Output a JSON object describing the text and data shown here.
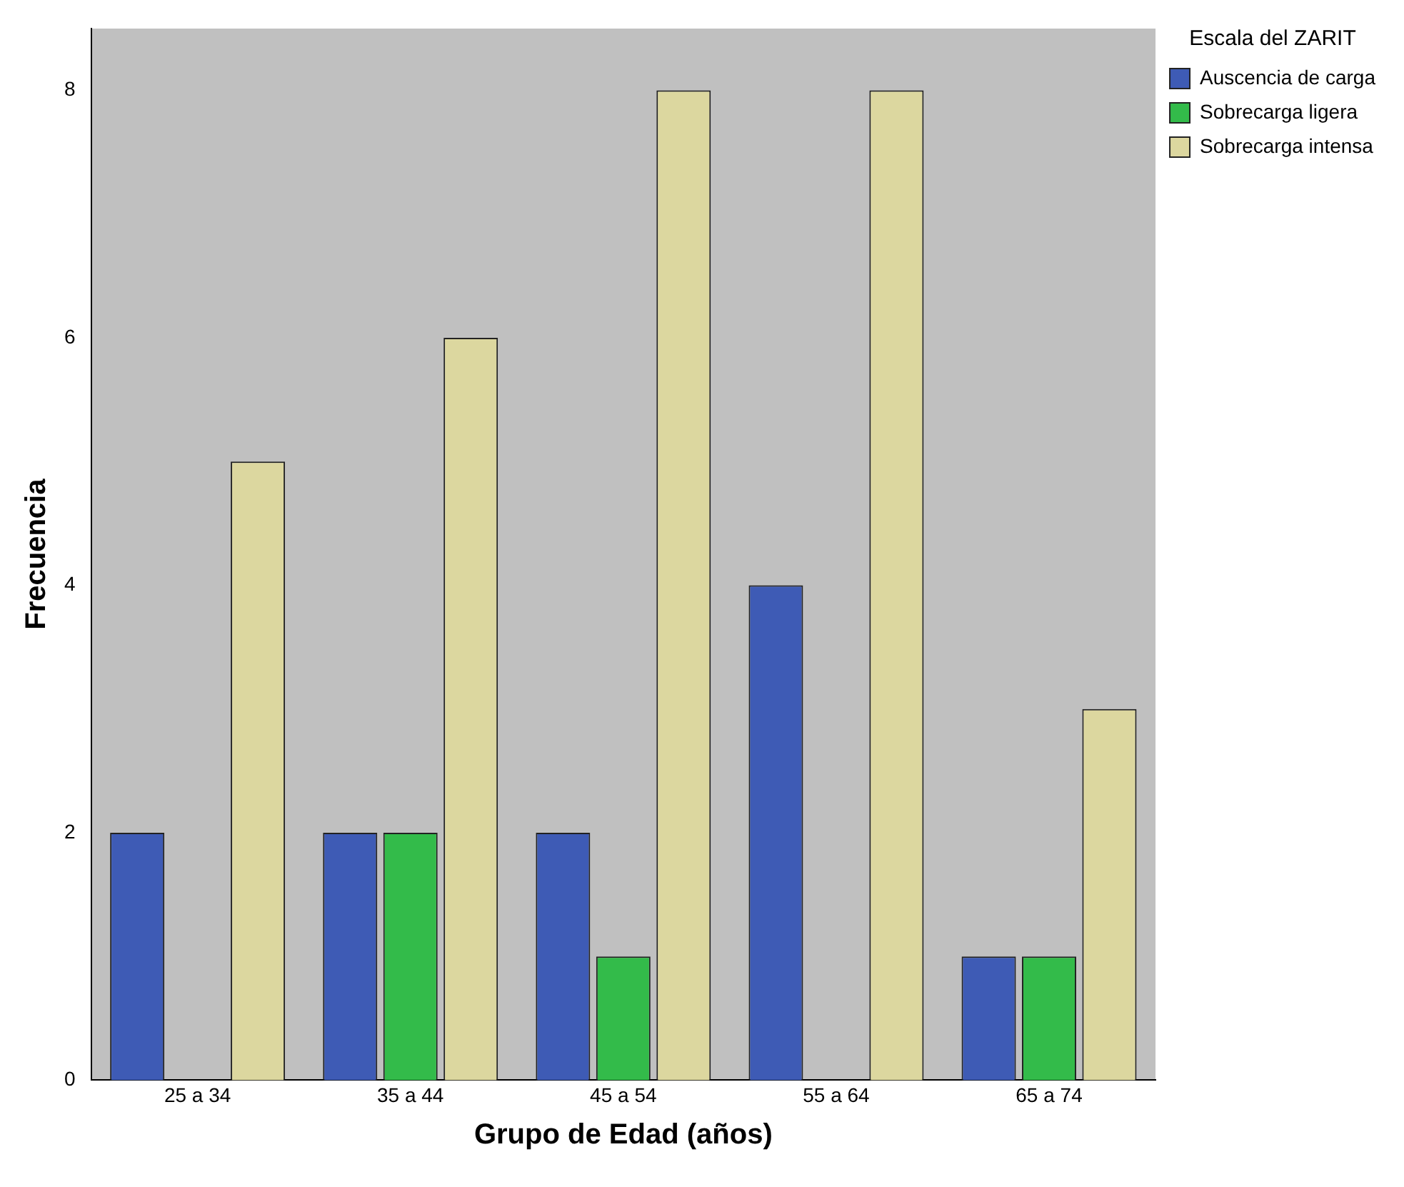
{
  "chart_data": {
    "type": "bar",
    "xlabel": "Grupo de Edad (años)",
    "ylabel": "Frecuencia",
    "legend_title": "Escala del ZARIT",
    "categories": [
      "25 a 34",
      "35 a 44",
      "45 a 54",
      "55 a 64",
      "65 a 74"
    ],
    "series": [
      {
        "name": "Auscencia de carga",
        "color": "#3e5bb5",
        "values": [
          2,
          2,
          2,
          4,
          1
        ]
      },
      {
        "name": "Sobrecarga ligera",
        "color": "#33bb4a",
        "values": [
          0,
          2,
          1,
          0,
          1
        ]
      },
      {
        "name": "Sobrecarga intensa",
        "color": "#dcd79f",
        "values": [
          5,
          6,
          8,
          8,
          3
        ]
      }
    ],
    "ylim": [
      0,
      8.5
    ],
    "yticks": [
      0,
      2,
      4,
      6,
      8
    ],
    "grid": false,
    "legend": "top right"
  }
}
